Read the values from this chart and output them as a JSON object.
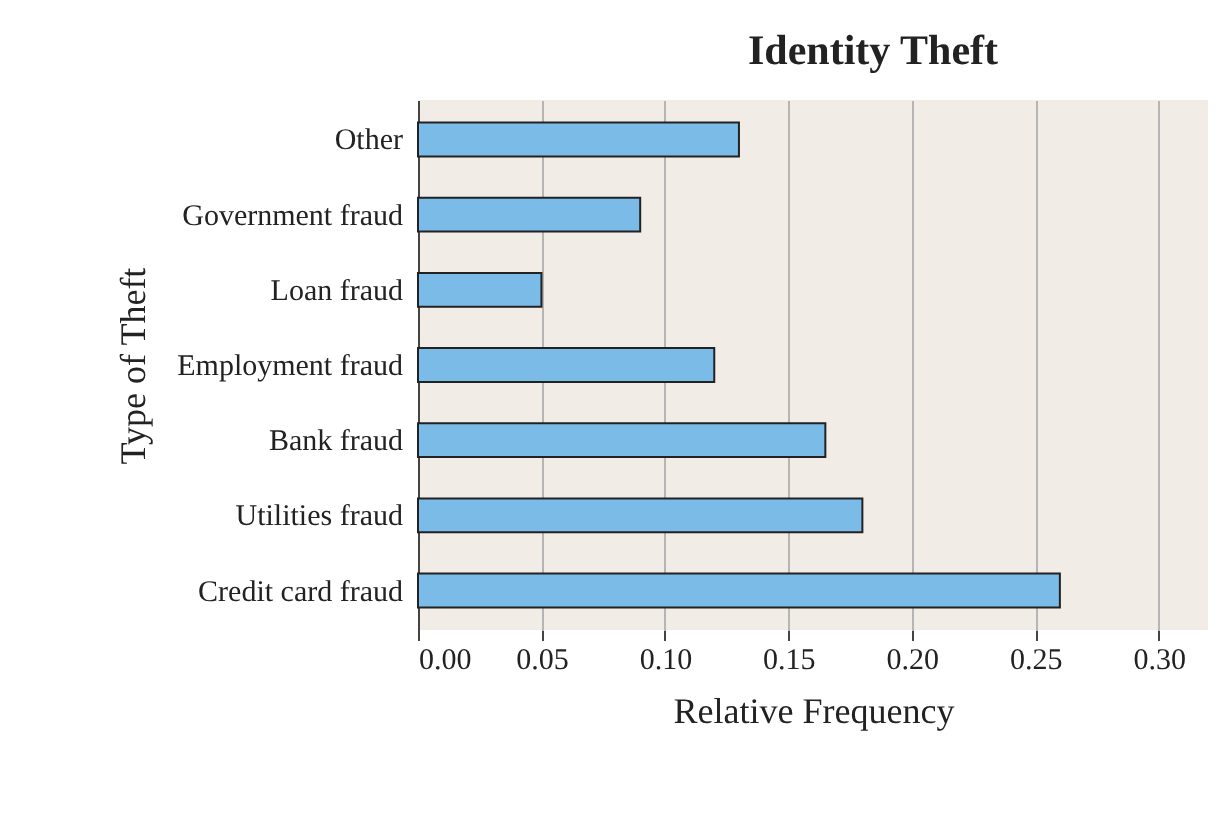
{
  "chart_data": {
    "type": "bar",
    "orientation": "horizontal",
    "title": "Identity Theft",
    "xlabel": "Relative Frequency",
    "ylabel": "Type of Theft",
    "categories": [
      "Other",
      "Government fraud",
      "Loan fraud",
      "Employment fraud",
      "Bank fraud",
      "Utilities fraud",
      "Credit card fraud"
    ],
    "values": [
      0.13,
      0.09,
      0.05,
      0.12,
      0.165,
      0.18,
      0.26
    ],
    "color": "#7bbbe8",
    "xlim": [
      0,
      0.32
    ],
    "xticks": [
      {
        "value": 0,
        "label": "0.00"
      },
      {
        "value": 0.05,
        "label": "0.05"
      },
      {
        "value": 0.1,
        "label": "0.10"
      },
      {
        "value": 0.15,
        "label": "0.15"
      },
      {
        "value": 0.2,
        "label": "0.20"
      },
      {
        "value": 0.25,
        "label": "0.25"
      },
      {
        "value": 0.3,
        "label": "0.30"
      }
    ],
    "grid": "x"
  }
}
